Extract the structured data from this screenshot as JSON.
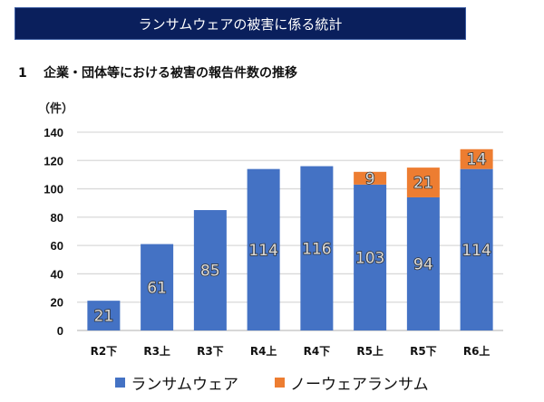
{
  "header": {
    "title": "ランサムウェアの被害に係る統計"
  },
  "section": {
    "number": "1",
    "title": "企業・団体等における被害の報告件数の推移"
  },
  "colors": {
    "banner": "#0a1f5c",
    "ransomware": "#4472c4",
    "noware": "#ed7d31",
    "grid": "#d9d9d9"
  },
  "chart_data": {
    "type": "bar",
    "stacked": true,
    "title": "",
    "ylabel": "（件）",
    "xlabel": "",
    "ylim": [
      0,
      140
    ],
    "yticks": [
      0,
      20,
      40,
      60,
      80,
      100,
      120,
      140
    ],
    "grid": true,
    "legend_position": "bottom",
    "categories": [
      "R2下",
      "R3上",
      "R3下",
      "R4上",
      "R4下",
      "R5上",
      "R5下",
      "R6上"
    ],
    "series": [
      {
        "name": "ランサムウェア",
        "color": "#4472c4",
        "values": [
          21,
          61,
          85,
          114,
          116,
          103,
          94,
          114
        ]
      },
      {
        "name": "ノーウェアランサム",
        "color": "#ed7d31",
        "values": [
          null,
          null,
          null,
          null,
          null,
          9,
          21,
          14
        ]
      }
    ]
  }
}
